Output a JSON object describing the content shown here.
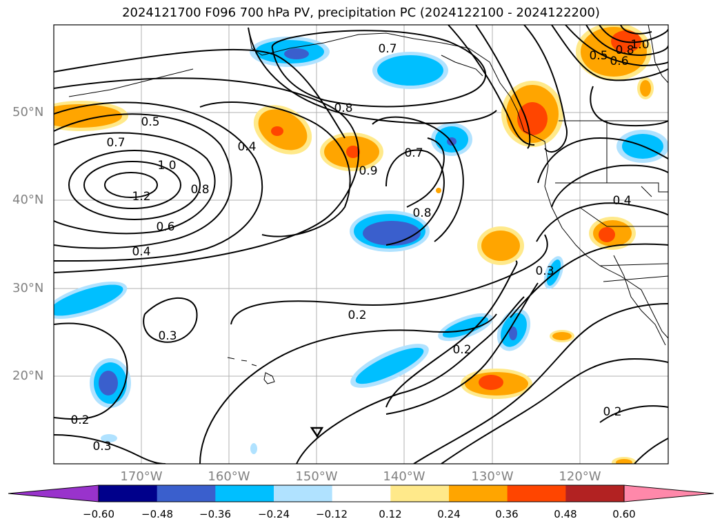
{
  "title": "2024121700 F096 700 hPa PV, precipitation PC (2024122100 - 2024122200)",
  "map": {
    "lat_labels": [
      "50°N",
      "40°N",
      "30°N",
      "20°N"
    ],
    "lon_labels": [
      "170°W",
      "160°W",
      "150°W",
      "140°W",
      "130°W",
      "120°W"
    ],
    "contour_labels": [
      "0.7",
      "0.8",
      "0.5",
      "0.7",
      "1.0",
      "1.2",
      "0.8",
      "0.6",
      "0.4",
      "0.4",
      "0.9",
      "0.7",
      "0.8",
      "0.3",
      "0.2",
      "0.2",
      "0.3",
      "0.2",
      "0.3",
      "0.2",
      "0.4",
      "1.0",
      "0.8",
      "0.6",
      "0.5"
    ],
    "grid": true
  },
  "colorbar": {
    "ticks": [
      "−0.60",
      "−0.48",
      "−0.36",
      "−0.24",
      "−0.12",
      "0.12",
      "0.24",
      "0.36",
      "0.48",
      "0.60"
    ],
    "colors": [
      "#9933cc",
      "#00008b",
      "#3a5fcd",
      "#00bfff",
      "#b0e2ff",
      "#ffffff",
      "#ffe98a",
      "#ffa500",
      "#ff4500",
      "#b22222",
      "#ff88aa"
    ]
  }
}
